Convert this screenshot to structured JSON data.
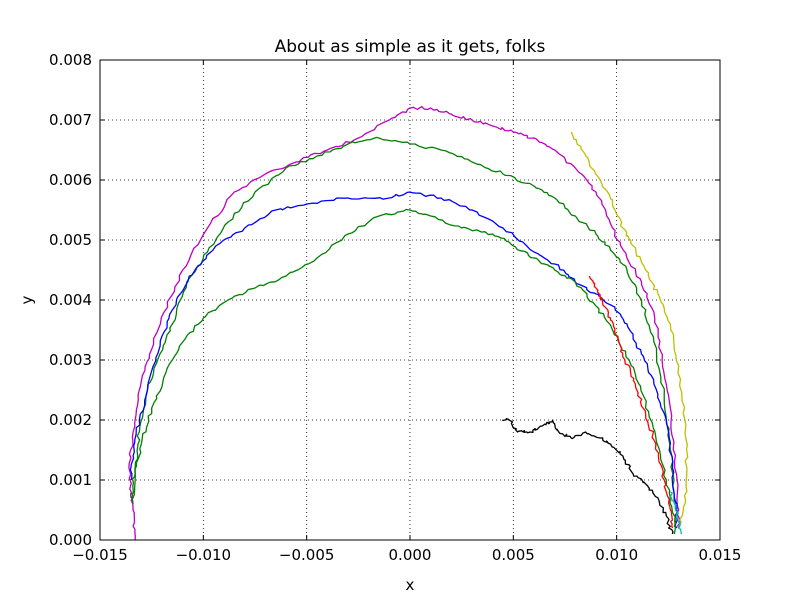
{
  "chart_data": {
    "type": "line",
    "title": "About as simple as it gets, folks",
    "xlabel": "x",
    "ylabel": "y",
    "xlim": [
      -0.015,
      0.015
    ],
    "ylim": [
      0.0,
      0.008
    ],
    "xticks": [
      "−0.015",
      "−0.010",
      "−0.005",
      "0.000",
      "0.005",
      "0.010",
      "0.015"
    ],
    "yticks": [
      "0.000",
      "0.001",
      "0.002",
      "0.003",
      "0.004",
      "0.005",
      "0.006",
      "0.007",
      "0.008"
    ],
    "xtick_values": [
      -0.015,
      -0.01,
      -0.005,
      0.0,
      0.005,
      0.01,
      0.015
    ],
    "ytick_values": [
      0.0,
      0.001,
      0.002,
      0.003,
      0.004,
      0.005,
      0.006,
      0.007,
      0.008
    ],
    "grid": true,
    "series": [
      {
        "color": "#bf00bf",
        "points": [
          [
            -0.0133,
            0.0
          ],
          [
            -0.0134,
            0.0005
          ],
          [
            -0.0136,
            0.0012
          ],
          [
            -0.0134,
            0.0018
          ],
          [
            -0.0131,
            0.0025
          ],
          [
            -0.0126,
            0.0031
          ],
          [
            -0.0119,
            0.0038
          ],
          [
            -0.011,
            0.0045
          ],
          [
            -0.0098,
            0.0052
          ],
          [
            -0.0085,
            0.0058
          ],
          [
            -0.007,
            0.0061
          ],
          [
            -0.0055,
            0.0063
          ],
          [
            -0.004,
            0.0065
          ],
          [
            -0.0025,
            0.0067
          ],
          [
            -0.001,
            0.007
          ],
          [
            0.0,
            0.0072
          ],
          [
            0.001,
            0.0072
          ],
          [
            0.002,
            0.0071
          ],
          [
            0.003,
            0.007
          ],
          [
            0.004,
            0.0069
          ],
          [
            0.005,
            0.0068
          ],
          [
            0.006,
            0.0067
          ],
          [
            0.007,
            0.0065
          ],
          [
            0.008,
            0.0062
          ],
          [
            0.009,
            0.0058
          ],
          [
            0.0098,
            0.0052
          ],
          [
            0.0105,
            0.0047
          ],
          [
            0.0112,
            0.0043
          ],
          [
            0.0118,
            0.0038
          ],
          [
            0.0122,
            0.003
          ],
          [
            0.0126,
            0.0022
          ],
          [
            0.0128,
            0.0013
          ],
          [
            0.013,
            0.0005
          ],
          [
            0.013,
            0.0002
          ]
        ]
      },
      {
        "color": "#008000",
        "points": [
          [
            -0.0134,
            0.0006
          ],
          [
            -0.0133,
            0.0012
          ],
          [
            -0.0131,
            0.0018
          ],
          [
            -0.0127,
            0.0025
          ],
          [
            -0.0121,
            0.0031
          ],
          [
            -0.0115,
            0.0036
          ],
          [
            -0.0108,
            0.0043
          ],
          [
            -0.0098,
            0.0048
          ],
          [
            -0.0088,
            0.0053
          ],
          [
            -0.0075,
            0.0058
          ],
          [
            -0.006,
            0.0062
          ],
          [
            -0.0045,
            0.0064
          ],
          [
            -0.003,
            0.0066
          ],
          [
            -0.0015,
            0.0067
          ],
          [
            0.0,
            0.0066
          ],
          [
            0.0015,
            0.0065
          ],
          [
            0.003,
            0.0063
          ],
          [
            0.0045,
            0.0061
          ],
          [
            0.006,
            0.0059
          ],
          [
            0.007,
            0.0057
          ],
          [
            0.008,
            0.0054
          ],
          [
            0.009,
            0.0051
          ],
          [
            0.0098,
            0.0048
          ],
          [
            0.0105,
            0.0045
          ],
          [
            0.0112,
            0.004
          ],
          [
            0.0118,
            0.0033
          ],
          [
            0.0123,
            0.0024
          ],
          [
            0.0126,
            0.0015
          ],
          [
            0.0128,
            0.0007
          ],
          [
            0.0129,
            0.0002
          ]
        ]
      },
      {
        "color": "#0000ff",
        "points": [
          [
            -0.0135,
            0.001
          ],
          [
            -0.0134,
            0.0014
          ],
          [
            -0.0131,
            0.002
          ],
          [
            -0.0126,
            0.0027
          ],
          [
            -0.012,
            0.0034
          ],
          [
            -0.0113,
            0.004
          ],
          [
            -0.0104,
            0.0045
          ],
          [
            -0.0094,
            0.0049
          ],
          [
            -0.008,
            0.0052
          ],
          [
            -0.0065,
            0.0055
          ],
          [
            -0.005,
            0.0056
          ],
          [
            -0.003,
            0.0057
          ],
          [
            -0.001,
            0.0057
          ],
          [
            0.0,
            0.0058
          ],
          [
            0.0015,
            0.0057
          ],
          [
            0.003,
            0.0055
          ],
          [
            0.0045,
            0.0052
          ],
          [
            0.006,
            0.0048
          ],
          [
            0.007,
            0.0046
          ],
          [
            0.008,
            0.0043
          ],
          [
            0.009,
            0.0041
          ],
          [
            0.0098,
            0.0039
          ],
          [
            0.0105,
            0.0036
          ],
          [
            0.0112,
            0.0031
          ],
          [
            0.0118,
            0.0026
          ],
          [
            0.0124,
            0.002
          ],
          [
            0.0127,
            0.0012
          ],
          [
            0.0129,
            0.0005
          ],
          [
            0.0129,
            0.0002
          ]
        ]
      },
      {
        "color": "#008000",
        "points": [
          [
            -0.0135,
            0.0007
          ],
          [
            -0.0133,
            0.0011
          ],
          [
            -0.013,
            0.0016
          ],
          [
            -0.0125,
            0.0022
          ],
          [
            -0.0118,
            0.0028
          ],
          [
            -0.011,
            0.0033
          ],
          [
            -0.01,
            0.0037
          ],
          [
            -0.0088,
            0.004
          ],
          [
            -0.0075,
            0.0042
          ],
          [
            -0.006,
            0.0044
          ],
          [
            -0.0045,
            0.0047
          ],
          [
            -0.003,
            0.0051
          ],
          [
            -0.0015,
            0.0054
          ],
          [
            0.0,
            0.0055
          ],
          [
            0.001,
            0.0054
          ],
          [
            0.0025,
            0.0052
          ],
          [
            0.004,
            0.0051
          ],
          [
            0.005,
            0.0049
          ],
          [
            0.006,
            0.0047
          ],
          [
            0.007,
            0.0045
          ],
          [
            0.008,
            0.0043
          ],
          [
            0.009,
            0.0039
          ],
          [
            0.0098,
            0.0035
          ],
          [
            0.0106,
            0.003
          ],
          [
            0.0113,
            0.0024
          ],
          [
            0.0119,
            0.0017
          ],
          [
            0.0124,
            0.001
          ],
          [
            0.0128,
            0.0004
          ],
          [
            0.0128,
            0.0001
          ]
        ]
      },
      {
        "color": "#bfbf00",
        "points": [
          [
            0.0078,
            0.0068
          ],
          [
            0.0085,
            0.0064
          ],
          [
            0.0092,
            0.006
          ],
          [
            0.0098,
            0.0056
          ],
          [
            0.0103,
            0.0052
          ],
          [
            0.0108,
            0.0049
          ],
          [
            0.0114,
            0.0045
          ],
          [
            0.012,
            0.0041
          ],
          [
            0.0126,
            0.0036
          ],
          [
            0.013,
            0.0029
          ],
          [
            0.0133,
            0.002
          ],
          [
            0.0134,
            0.0012
          ],
          [
            0.0133,
            0.0006
          ],
          [
            0.013,
            0.0002
          ]
        ]
      },
      {
        "color": "#ff0000",
        "points": [
          [
            0.0087,
            0.0044
          ],
          [
            0.009,
            0.0042
          ],
          [
            0.0093,
            0.004
          ],
          [
            0.0097,
            0.0037
          ],
          [
            0.01,
            0.0034
          ],
          [
            0.0104,
            0.003
          ],
          [
            0.0109,
            0.0026
          ],
          [
            0.0114,
            0.0021
          ],
          [
            0.0119,
            0.0016
          ],
          [
            0.0123,
            0.001
          ],
          [
            0.0126,
            0.0005
          ],
          [
            0.0127,
            0.0002
          ]
        ]
      },
      {
        "color": "#000000",
        "points": [
          [
            0.0045,
            0.002
          ],
          [
            0.0048,
            0.002
          ],
          [
            0.0052,
            0.0018
          ],
          [
            0.0058,
            0.0018
          ],
          [
            0.0064,
            0.0019
          ],
          [
            0.0069,
            0.002
          ],
          [
            0.0072,
            0.0018
          ],
          [
            0.0078,
            0.0017
          ],
          [
            0.0085,
            0.0018
          ],
          [
            0.0092,
            0.0017
          ],
          [
            0.0097,
            0.0016
          ],
          [
            0.0103,
            0.0014
          ],
          [
            0.0108,
            0.0011
          ],
          [
            0.0115,
            0.0009
          ],
          [
            0.012,
            0.0007
          ],
          [
            0.0124,
            0.0004
          ],
          [
            0.0127,
            0.0001
          ]
        ]
      },
      {
        "color": "#00bfbf",
        "points": [
          [
            0.0126,
            0.0008
          ],
          [
            0.0128,
            0.0006
          ],
          [
            0.013,
            0.0003
          ],
          [
            0.0131,
            0.0001
          ]
        ]
      }
    ]
  }
}
